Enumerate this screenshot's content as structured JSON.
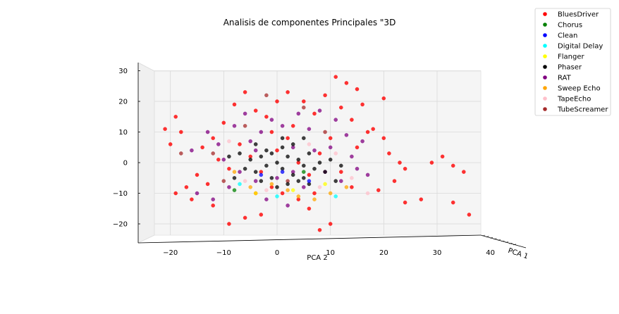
{
  "chart_data": {
    "type": "scatter",
    "projection": "3d",
    "title": "Analisis de componentes Principales \"3D",
    "xlabel": "PCA 2",
    "ylabel": "PCA 1",
    "zlabel": "",
    "xlim": [
      -26,
      41
    ],
    "zlim": [
      -27,
      31
    ],
    "x_ticks": [
      -20,
      -10,
      0,
      10,
      20,
      30,
      40
    ],
    "z_ticks": [
      -20,
      -10,
      0,
      10,
      20,
      30
    ],
    "grid": true,
    "legend_position": "top-right",
    "series": [
      {
        "name": "BluesDriver",
        "color": "#ff0000"
      },
      {
        "name": "Chorus",
        "color": "#008000"
      },
      {
        "name": "Clean",
        "color": "#0000ff"
      },
      {
        "name": "Digital Delay",
        "color": "#00ffff"
      },
      {
        "name": "Flanger",
        "color": "#ffff00"
      },
      {
        "name": "Phaser",
        "color": "#000000"
      },
      {
        "name": "RAT",
        "color": "#800080"
      },
      {
        "name": "Sweep Echo",
        "color": "#ffa500"
      },
      {
        "name": "TapeEcho",
        "color": "#ffc0cb"
      },
      {
        "name": "TubeScreamer",
        "color": "#a52a2a"
      }
    ],
    "points": [
      [
        -21,
        11,
        "BluesDriver"
      ],
      [
        -19,
        15,
        "BluesDriver"
      ],
      [
        -18,
        10,
        "BluesDriver"
      ],
      [
        -20,
        6,
        "BluesDriver"
      ],
      [
        -17,
        -8,
        "BluesDriver"
      ],
      [
        -19,
        -10,
        "BluesDriver"
      ],
      [
        -16,
        -12,
        "BluesDriver"
      ],
      [
        -15,
        -4,
        "BluesDriver"
      ],
      [
        -12,
        -14,
        "BluesDriver"
      ],
      [
        -9,
        -20,
        "BluesDriver"
      ],
      [
        -6,
        -18,
        "BluesDriver"
      ],
      [
        -3,
        -17,
        "BluesDriver"
      ],
      [
        -14,
        5,
        "BluesDriver"
      ],
      [
        -12,
        8,
        "BluesDriver"
      ],
      [
        -10,
        13,
        "BluesDriver"
      ],
      [
        -8,
        19,
        "BluesDriver"
      ],
      [
        -6,
        23,
        "BluesDriver"
      ],
      [
        -4,
        17,
        "BluesDriver"
      ],
      [
        -2,
        15,
        "BluesDriver"
      ],
      [
        0,
        20,
        "BluesDriver"
      ],
      [
        2,
        23,
        "BluesDriver"
      ],
      [
        5,
        20,
        "BluesDriver"
      ],
      [
        7,
        16,
        "BluesDriver"
      ],
      [
        9,
        22,
        "BluesDriver"
      ],
      [
        11,
        28,
        "BluesDriver"
      ],
      [
        13,
        26,
        "BluesDriver"
      ],
      [
        15,
        24,
        "BluesDriver"
      ],
      [
        12,
        18,
        "BluesDriver"
      ],
      [
        14,
        14,
        "BluesDriver"
      ],
      [
        16,
        19,
        "BluesDriver"
      ],
      [
        18,
        11,
        "BluesDriver"
      ],
      [
        20,
        8,
        "BluesDriver"
      ],
      [
        21,
        3,
        "BluesDriver"
      ],
      [
        23,
        0,
        "BluesDriver"
      ],
      [
        24,
        -2,
        "BluesDriver"
      ],
      [
        22,
        -6,
        "BluesDriver"
      ],
      [
        19,
        -9,
        "BluesDriver"
      ],
      [
        24,
        -13,
        "BluesDriver"
      ],
      [
        27,
        -12,
        "BluesDriver"
      ],
      [
        29,
        0,
        "BluesDriver"
      ],
      [
        33,
        -1,
        "BluesDriver"
      ],
      [
        35,
        -3,
        "BluesDriver"
      ],
      [
        33,
        -13,
        "BluesDriver"
      ],
      [
        36,
        -17,
        "BluesDriver"
      ],
      [
        31,
        2,
        "BluesDriver"
      ],
      [
        20,
        21,
        "BluesDriver"
      ],
      [
        17,
        10,
        "BluesDriver"
      ],
      [
        15,
        5,
        "BluesDriver"
      ],
      [
        10,
        -20,
        "BluesDriver"
      ],
      [
        8,
        -22,
        "BluesDriver"
      ],
      [
        6,
        -15,
        "BluesDriver"
      ],
      [
        4,
        -12,
        "BluesDriver"
      ],
      [
        1,
        -10,
        "BluesDriver"
      ],
      [
        -1,
        -8,
        "BluesDriver"
      ],
      [
        -3,
        -3,
        "BluesDriver"
      ],
      [
        -5,
        2,
        "BluesDriver"
      ],
      [
        -7,
        6,
        "BluesDriver"
      ],
      [
        -9,
        -2,
        "BluesDriver"
      ],
      [
        -11,
        1,
        "BluesDriver"
      ],
      [
        -13,
        -7,
        "BluesDriver"
      ],
      [
        0,
        4,
        "BluesDriver"
      ],
      [
        2,
        8,
        "BluesDriver"
      ],
      [
        4,
        0,
        "BluesDriver"
      ],
      [
        6,
        -4,
        "BluesDriver"
      ],
      [
        8,
        3,
        "BluesDriver"
      ],
      [
        10,
        8,
        "BluesDriver"
      ],
      [
        12,
        -3,
        "BluesDriver"
      ],
      [
        14,
        -8,
        "BluesDriver"
      ],
      [
        3,
        12,
        "BluesDriver"
      ],
      [
        -1,
        10,
        "BluesDriver"
      ],
      [
        -4,
        -10,
        "BluesDriver"
      ],
      [
        7,
        -10,
        "BluesDriver"
      ],
      [
        -18,
        3,
        "TubeScreamer"
      ],
      [
        -12,
        3,
        "TubeScreamer"
      ],
      [
        -6,
        12,
        "TubeScreamer"
      ],
      [
        2,
        -6,
        "TubeScreamer"
      ],
      [
        9,
        10,
        "TubeScreamer"
      ],
      [
        -2,
        22,
        "TubeScreamer"
      ],
      [
        5,
        18,
        "TubeScreamer"
      ],
      [
        -10,
        -6,
        "TubeScreamer"
      ],
      [
        -16,
        4,
        "RAT"
      ],
      [
        -15,
        -10,
        "RAT"
      ],
      [
        -13,
        10,
        "RAT"
      ],
      [
        -11,
        6,
        "RAT"
      ],
      [
        -9,
        -8,
        "RAT"
      ],
      [
        -8,
        12,
        "RAT"
      ],
      [
        -7,
        -3,
        "RAT"
      ],
      [
        -6,
        16,
        "RAT"
      ],
      [
        -5,
        7,
        "RAT"
      ],
      [
        -4,
        -6,
        "RAT"
      ],
      [
        -3,
        10,
        "RAT"
      ],
      [
        -2,
        -12,
        "RAT"
      ],
      [
        -1,
        14,
        "RAT"
      ],
      [
        0,
        -5,
        "RAT"
      ],
      [
        1,
        12,
        "RAT"
      ],
      [
        2,
        -14,
        "RAT"
      ],
      [
        3,
        5,
        "RAT"
      ],
      [
        4,
        16,
        "RAT"
      ],
      [
        5,
        -8,
        "RAT"
      ],
      [
        6,
        11,
        "RAT"
      ],
      [
        7,
        4,
        "RAT"
      ],
      [
        8,
        17,
        "RAT"
      ],
      [
        9,
        -3,
        "RAT"
      ],
      [
        10,
        5,
        "RAT"
      ],
      [
        11,
        14,
        "RAT"
      ],
      [
        12,
        -6,
        "RAT"
      ],
      [
        13,
        9,
        "RAT"
      ],
      [
        14,
        2,
        "RAT"
      ],
      [
        15,
        -2,
        "RAT"
      ],
      [
        17,
        -4,
        "RAT"
      ],
      [
        16,
        7,
        "RAT"
      ],
      [
        -10,
        1,
        "RAT"
      ],
      [
        -12,
        -12,
        "RAT"
      ],
      [
        3,
        -3,
        "RAT"
      ],
      [
        -4,
        4,
        "RAT"
      ],
      [
        -3,
        2,
        "Phaser"
      ],
      [
        -2,
        -1,
        "Phaser"
      ],
      [
        -1,
        3,
        "Phaser"
      ],
      [
        0,
        0,
        "Phaser"
      ],
      [
        1,
        -2,
        "Phaser"
      ],
      [
        2,
        2,
        "Phaser"
      ],
      [
        3,
        -4,
        "Phaser"
      ],
      [
        4,
        1,
        "Phaser"
      ],
      [
        5,
        -1,
        "Phaser"
      ],
      [
        6,
        3,
        "Phaser"
      ],
      [
        -4,
        -3,
        "Phaser"
      ],
      [
        -5,
        1,
        "Phaser"
      ],
      [
        -6,
        -2,
        "Phaser"
      ],
      [
        -3,
        -6,
        "Phaser"
      ],
      [
        -1,
        -5,
        "Phaser"
      ],
      [
        1,
        5,
        "Phaser"
      ],
      [
        3,
        6,
        "Phaser"
      ],
      [
        5,
        -5,
        "Phaser"
      ],
      [
        7,
        -2,
        "Phaser"
      ],
      [
        8,
        0,
        "Phaser"
      ],
      [
        -2,
        4,
        "Phaser"
      ],
      [
        0,
        -8,
        "Phaser"
      ],
      [
        2,
        -7,
        "Phaser"
      ],
      [
        4,
        -6,
        "Phaser"
      ],
      [
        -7,
        3,
        "Phaser"
      ],
      [
        9,
        -3,
        "Phaser"
      ],
      [
        6,
        -7,
        "Phaser"
      ],
      [
        -4,
        6,
        "Phaser"
      ],
      [
        1,
        8,
        "Phaser"
      ],
      [
        10,
        1,
        "Phaser"
      ],
      [
        12,
        -1,
        "Phaser"
      ],
      [
        11,
        -6,
        "Phaser"
      ],
      [
        -8,
        -5,
        "Phaser"
      ],
      [
        -9,
        2,
        "Phaser"
      ],
      [
        5,
        8,
        "Phaser"
      ],
      [
        -5,
        -8,
        "Sweep Echo"
      ],
      [
        4,
        -11,
        "Sweep Echo"
      ],
      [
        13,
        -8,
        "Sweep Echo"
      ],
      [
        -1,
        -7,
        "Sweep Echo"
      ],
      [
        7,
        -12,
        "Sweep Echo"
      ],
      [
        -8,
        -3,
        "Sweep Echo"
      ],
      [
        10,
        -10,
        "Sweep Echo"
      ],
      [
        2,
        -9,
        "Sweep Echo"
      ],
      [
        -6,
        -6,
        "TapeEcho"
      ],
      [
        8,
        -8,
        "TapeEcho"
      ],
      [
        -2,
        -9,
        "TapeEcho"
      ],
      [
        14,
        -5,
        "TapeEcho"
      ],
      [
        6,
        6,
        "TapeEcho"
      ],
      [
        -9,
        7,
        "TapeEcho"
      ],
      [
        17,
        -10,
        "TapeEcho"
      ],
      [
        11,
        3,
        "TapeEcho"
      ],
      [
        3,
        -9,
        "Flanger"
      ],
      [
        -4,
        -10,
        "Flanger"
      ],
      [
        9,
        -7,
        "Flanger"
      ],
      [
        -7,
        -7,
        "Digital Delay"
      ],
      [
        11,
        -11,
        "Digital Delay"
      ],
      [
        0,
        -11,
        "Digital Delay"
      ],
      [
        -3,
        -4,
        "Clean"
      ],
      [
        6,
        -6,
        "Clean"
      ],
      [
        1,
        -3,
        "Clean"
      ],
      [
        -8,
        -9,
        "Chorus"
      ],
      [
        5,
        -3,
        "Chorus"
      ]
    ]
  }
}
